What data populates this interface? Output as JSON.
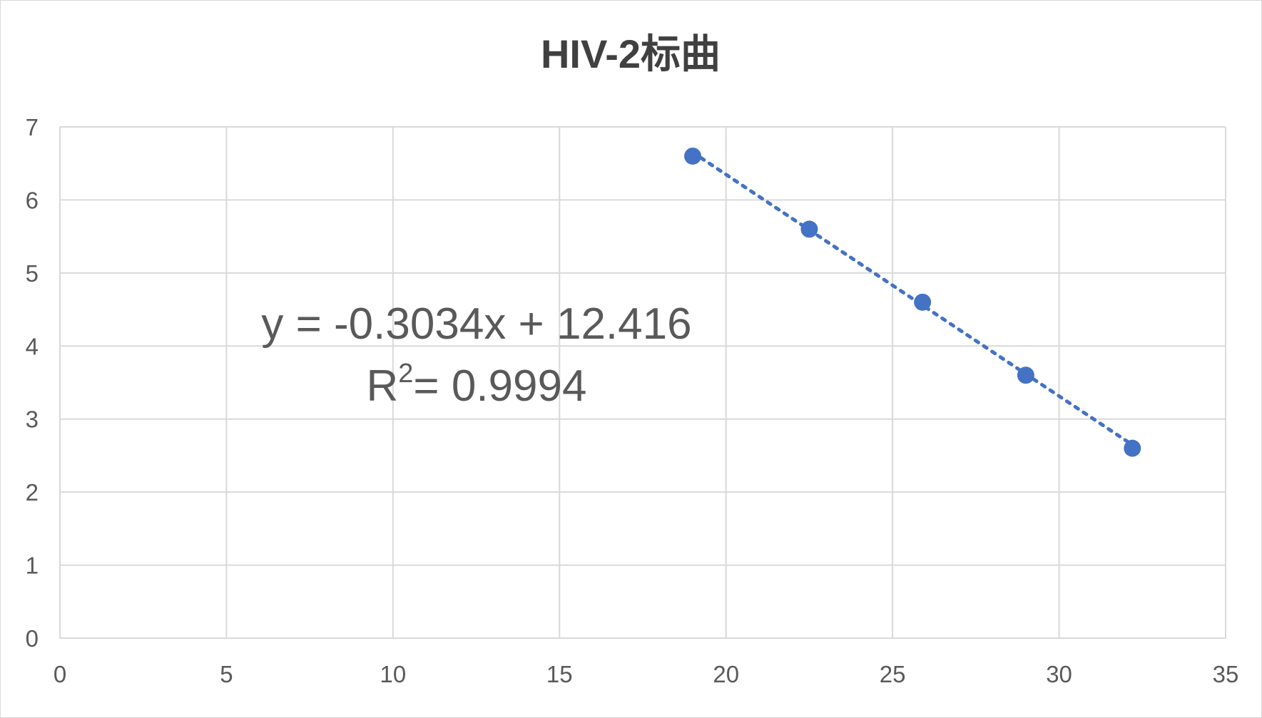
{
  "chart_data": {
    "type": "scatter",
    "title": "HIV-2标曲",
    "xlabel": "",
    "ylabel": "",
    "xlim": [
      0,
      35
    ],
    "ylim": [
      0,
      7
    ],
    "x_ticks": [
      0,
      5,
      10,
      15,
      20,
      25,
      30,
      35
    ],
    "y_ticks": [
      0,
      1,
      2,
      3,
      4,
      5,
      6,
      7
    ],
    "grid": true,
    "legend": "none",
    "series": [
      {
        "points": [
          {
            "x": 19.0,
            "y": 6.6
          },
          {
            "x": 22.5,
            "y": 5.6
          },
          {
            "x": 25.9,
            "y": 4.6
          },
          {
            "x": 29.0,
            "y": 3.6
          },
          {
            "x": 32.2,
            "y": 2.6
          }
        ],
        "color": "#4472c4"
      }
    ],
    "trendline": {
      "type": "linear",
      "slope": -0.3034,
      "intercept": 12.416,
      "style": "dotted",
      "color": "#4472c4",
      "equation_label": "y = -0.3034x + 12.416",
      "r2_prefix": "R",
      "r2_exponent": "2",
      "r2_value": "= 0.9994"
    }
  },
  "colors": {
    "gridline": "#d9d9d9",
    "marker": "#4472c4",
    "text": "#595959",
    "title": "#404040"
  }
}
